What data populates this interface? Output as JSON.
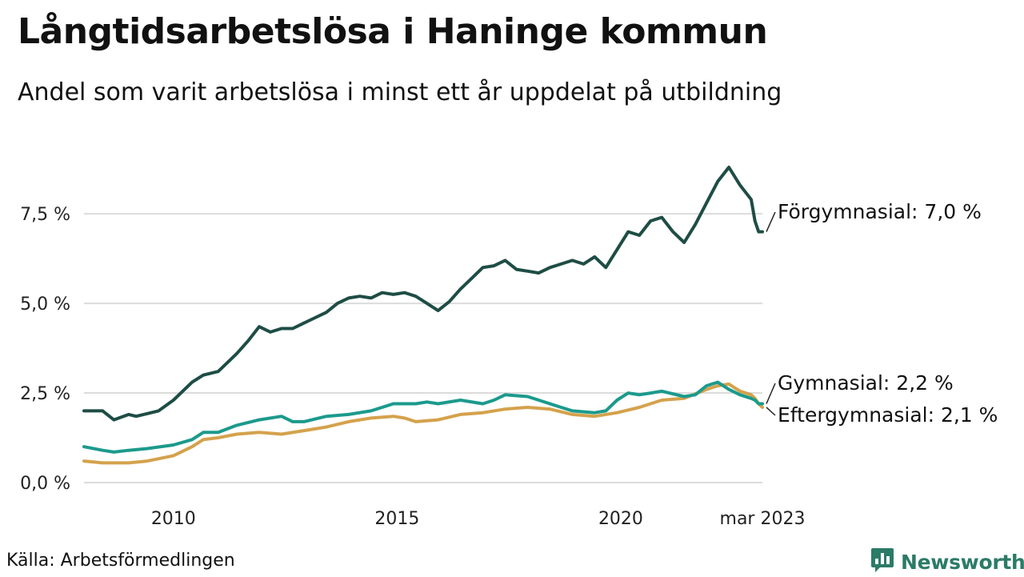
{
  "header": {
    "title": "Långtidsarbetslösa i Haninge kommun",
    "subtitle": "Andel som varit arbetslösa i minst ett år uppdelat på utbildning"
  },
  "footer": {
    "source": "Källa: Arbetsförmedlingen",
    "brand": "Newsworthy",
    "brand_icon": "bar-chart-logo-icon",
    "brand_color": "#2b7b67"
  },
  "chart_data": {
    "type": "line",
    "x_domain": [
      "2008-01",
      "2023-03"
    ],
    "ylim": [
      0,
      9
    ],
    "y_ticks": [
      {
        "value": 0,
        "label": "0,0 %"
      },
      {
        "value": 2.5,
        "label": "2,5 %"
      },
      {
        "value": 5.0,
        "label": "5,0 %"
      },
      {
        "value": 7.5,
        "label": "7,5 %"
      }
    ],
    "x_ticks": [
      {
        "value": "2010-01",
        "label": "2010"
      },
      {
        "value": "2015-01",
        "label": "2015"
      },
      {
        "value": "2020-01",
        "label": "2020"
      },
      {
        "value": "2023-03",
        "label": "mar 2023"
      }
    ],
    "grid": "horizontal",
    "series": [
      {
        "name": "Förgymnasial",
        "end_label": "Förgymnasial: 7,0 %",
        "color": "#1e4d45",
        "points": [
          [
            "2008-01",
            2.0
          ],
          [
            "2008-06",
            2.0
          ],
          [
            "2008-09",
            1.75
          ],
          [
            "2009-01",
            1.9
          ],
          [
            "2009-03",
            1.85
          ],
          [
            "2009-07",
            1.95
          ],
          [
            "2009-09",
            2.0
          ],
          [
            "2010-01",
            2.3
          ],
          [
            "2010-06",
            2.8
          ],
          [
            "2010-09",
            3.0
          ],
          [
            "2011-01",
            3.1
          ],
          [
            "2011-06",
            3.6
          ],
          [
            "2011-09",
            3.95
          ],
          [
            "2011-12",
            4.35
          ],
          [
            "2012-03",
            4.2
          ],
          [
            "2012-06",
            4.3
          ],
          [
            "2012-09",
            4.3
          ],
          [
            "2012-12",
            4.45
          ],
          [
            "2013-03",
            4.6
          ],
          [
            "2013-06",
            4.75
          ],
          [
            "2013-09",
            5.0
          ],
          [
            "2013-12",
            5.15
          ],
          [
            "2014-03",
            5.2
          ],
          [
            "2014-06",
            5.15
          ],
          [
            "2014-09",
            5.3
          ],
          [
            "2014-12",
            5.25
          ],
          [
            "2015-03",
            5.3
          ],
          [
            "2015-06",
            5.2
          ],
          [
            "2015-09",
            5.0
          ],
          [
            "2015-12",
            4.8
          ],
          [
            "2016-03",
            5.05
          ],
          [
            "2016-06",
            5.4
          ],
          [
            "2016-09",
            5.7
          ],
          [
            "2016-12",
            6.0
          ],
          [
            "2017-03",
            6.05
          ],
          [
            "2017-06",
            6.2
          ],
          [
            "2017-09",
            5.95
          ],
          [
            "2017-12",
            5.9
          ],
          [
            "2018-03",
            5.85
          ],
          [
            "2018-06",
            6.0
          ],
          [
            "2018-09",
            6.1
          ],
          [
            "2018-12",
            6.2
          ],
          [
            "2019-03",
            6.1
          ],
          [
            "2019-06",
            6.3
          ],
          [
            "2019-09",
            6.0
          ],
          [
            "2019-12",
            6.5
          ],
          [
            "2020-03",
            7.0
          ],
          [
            "2020-06",
            6.9
          ],
          [
            "2020-09",
            7.3
          ],
          [
            "2020-12",
            7.4
          ],
          [
            "2021-03",
            7.0
          ],
          [
            "2021-06",
            6.7
          ],
          [
            "2021-09",
            7.2
          ],
          [
            "2021-12",
            7.8
          ],
          [
            "2022-03",
            8.4
          ],
          [
            "2022-06",
            8.8
          ],
          [
            "2022-09",
            8.3
          ],
          [
            "2022-12",
            7.9
          ],
          [
            "2023-01",
            7.3
          ],
          [
            "2023-02",
            7.0
          ],
          [
            "2023-03",
            7.0
          ]
        ]
      },
      {
        "name": "Gymnasial",
        "end_label": "Gymnasial: 2,2 %",
        "color": "#1b9a8c",
        "points": [
          [
            "2008-01",
            1.0
          ],
          [
            "2008-06",
            0.9
          ],
          [
            "2008-09",
            0.85
          ],
          [
            "2009-01",
            0.9
          ],
          [
            "2009-06",
            0.95
          ],
          [
            "2010-01",
            1.05
          ],
          [
            "2010-06",
            1.2
          ],
          [
            "2010-09",
            1.4
          ],
          [
            "2011-01",
            1.4
          ],
          [
            "2011-06",
            1.6
          ],
          [
            "2011-12",
            1.75
          ],
          [
            "2012-06",
            1.85
          ],
          [
            "2012-09",
            1.7
          ],
          [
            "2012-12",
            1.7
          ],
          [
            "2013-06",
            1.85
          ],
          [
            "2013-12",
            1.9
          ],
          [
            "2014-06",
            2.0
          ],
          [
            "2014-09",
            2.1
          ],
          [
            "2014-12",
            2.2
          ],
          [
            "2015-06",
            2.2
          ],
          [
            "2015-09",
            2.25
          ],
          [
            "2015-12",
            2.2
          ],
          [
            "2016-06",
            2.3
          ],
          [
            "2016-12",
            2.2
          ],
          [
            "2017-03",
            2.3
          ],
          [
            "2017-06",
            2.45
          ],
          [
            "2017-12",
            2.4
          ],
          [
            "2018-06",
            2.2
          ],
          [
            "2018-09",
            2.1
          ],
          [
            "2018-12",
            2.0
          ],
          [
            "2019-06",
            1.95
          ],
          [
            "2019-09",
            2.0
          ],
          [
            "2019-12",
            2.3
          ],
          [
            "2020-03",
            2.5
          ],
          [
            "2020-06",
            2.45
          ],
          [
            "2020-09",
            2.5
          ],
          [
            "2020-12",
            2.55
          ],
          [
            "2021-06",
            2.4
          ],
          [
            "2021-09",
            2.45
          ],
          [
            "2021-12",
            2.7
          ],
          [
            "2022-03",
            2.8
          ],
          [
            "2022-06",
            2.6
          ],
          [
            "2022-09",
            2.45
          ],
          [
            "2022-12",
            2.35
          ],
          [
            "2023-01",
            2.3
          ],
          [
            "2023-02",
            2.2
          ],
          [
            "2023-03",
            2.2
          ]
        ]
      },
      {
        "name": "Eftergymnasial",
        "end_label": "Eftergymnasial: 2,1 %",
        "color": "#d4a24c",
        "points": [
          [
            "2008-01",
            0.6
          ],
          [
            "2008-06",
            0.55
          ],
          [
            "2008-09",
            0.55
          ],
          [
            "2009-01",
            0.55
          ],
          [
            "2009-06",
            0.6
          ],
          [
            "2010-01",
            0.75
          ],
          [
            "2010-06",
            1.0
          ],
          [
            "2010-09",
            1.2
          ],
          [
            "2011-01",
            1.25
          ],
          [
            "2011-06",
            1.35
          ],
          [
            "2011-12",
            1.4
          ],
          [
            "2012-06",
            1.35
          ],
          [
            "2012-12",
            1.45
          ],
          [
            "2013-06",
            1.55
          ],
          [
            "2013-12",
            1.7
          ],
          [
            "2014-06",
            1.8
          ],
          [
            "2014-12",
            1.85
          ],
          [
            "2015-03",
            1.8
          ],
          [
            "2015-06",
            1.7
          ],
          [
            "2015-12",
            1.75
          ],
          [
            "2016-06",
            1.9
          ],
          [
            "2016-12",
            1.95
          ],
          [
            "2017-06",
            2.05
          ],
          [
            "2017-12",
            2.1
          ],
          [
            "2018-06",
            2.05
          ],
          [
            "2018-12",
            1.9
          ],
          [
            "2019-06",
            1.85
          ],
          [
            "2019-12",
            1.95
          ],
          [
            "2020-06",
            2.1
          ],
          [
            "2020-12",
            2.3
          ],
          [
            "2021-06",
            2.35
          ],
          [
            "2021-12",
            2.6
          ],
          [
            "2022-03",
            2.7
          ],
          [
            "2022-06",
            2.75
          ],
          [
            "2022-09",
            2.55
          ],
          [
            "2022-12",
            2.45
          ],
          [
            "2023-01",
            2.35
          ],
          [
            "2023-02",
            2.2
          ],
          [
            "2023-03",
            2.1
          ]
        ]
      }
    ]
  }
}
